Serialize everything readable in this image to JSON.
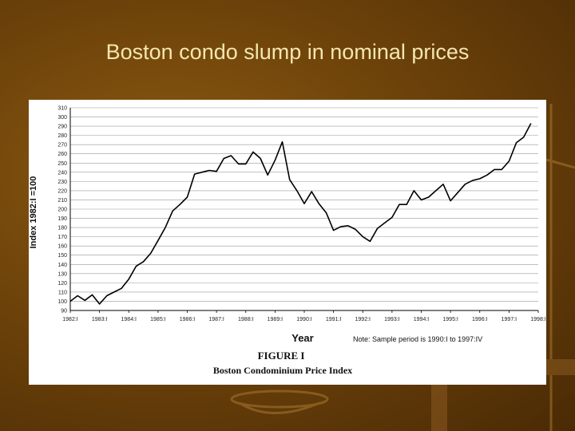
{
  "slide": {
    "title": "Boston condo slump in nominal prices"
  },
  "colors": {
    "background": "#6e430a",
    "title": "#f5e6b0",
    "line": "#000000",
    "grid": "#9a9a9a"
  },
  "chart_data": {
    "type": "line",
    "title": "FIGURE I",
    "subtitle": "Boston Condominium Price Index",
    "xlabel": "Year",
    "ylabel": "Index 1982:I =100",
    "note": "Note: Sample period is 1990:I to 1997:IV",
    "x_tick_labels": [
      "1982:I",
      "1983:I",
      "1984:I",
      "1985:I",
      "1986:I",
      "1987:I",
      "1988:I",
      "1989:I",
      "1990:I",
      "1991:I",
      "1992:I",
      "1993:I",
      "1994:I",
      "1995:I",
      "1996:I",
      "1997:I",
      "1998:I"
    ],
    "xlim": [
      1982,
      1998
    ],
    "ylim": [
      90,
      310
    ],
    "y_ticks": [
      90,
      100,
      110,
      120,
      130,
      140,
      150,
      160,
      170,
      180,
      190,
      200,
      210,
      220,
      230,
      240,
      250,
      260,
      270,
      280,
      290,
      300,
      310
    ],
    "grid": "horizontal",
    "series": [
      {
        "x": [
          1982.0,
          1982.25,
          1982.5,
          1982.75,
          1983.0,
          1983.25,
          1983.5,
          1983.75,
          1984.0,
          1984.25,
          1984.5,
          1984.75,
          1985.0,
          1985.25,
          1985.5,
          1985.75,
          1986.0,
          1986.25,
          1986.5,
          1986.75,
          1987.0,
          1987.25,
          1987.5,
          1987.75,
          1988.0,
          1988.25,
          1988.5,
          1988.75,
          1989.0,
          1989.25,
          1989.5,
          1989.75,
          1990.0,
          1990.25,
          1990.5,
          1990.75,
          1991.0,
          1991.25,
          1991.5,
          1991.75,
          1992.0,
          1992.25,
          1992.5,
          1992.75,
          1993.0,
          1993.25,
          1993.5,
          1993.75,
          1994.0,
          1994.25,
          1994.5,
          1994.75,
          1995.0,
          1995.25,
          1995.5,
          1995.75,
          1996.0,
          1996.25,
          1996.5,
          1996.75,
          1997.0,
          1997.25,
          1997.5,
          1997.75
        ],
        "values": [
          100,
          106,
          101,
          107,
          97,
          106,
          110,
          114,
          124,
          138,
          143,
          152,
          166,
          180,
          198,
          205,
          213,
          238,
          240,
          242,
          241,
          255,
          258,
          249,
          249,
          262,
          255,
          237,
          253,
          273,
          232,
          220,
          206,
          219,
          206,
          196,
          177,
          181,
          182,
          178,
          170,
          165,
          179,
          185,
          191,
          205,
          205,
          220,
          210,
          213,
          220,
          227,
          209,
          218,
          227,
          231,
          233,
          237,
          243,
          243,
          252,
          272,
          278,
          293
        ]
      }
    ]
  }
}
